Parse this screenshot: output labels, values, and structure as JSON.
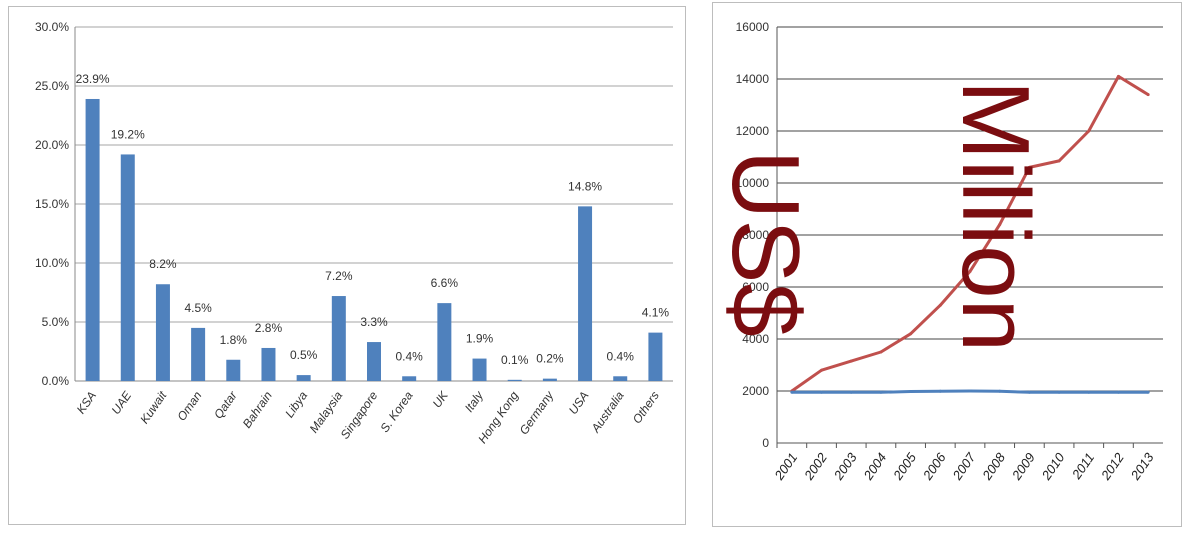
{
  "chart_data": [
    {
      "type": "bar",
      "categories": [
        "KSA",
        "UAE",
        "Kuwait",
        "Oman",
        "Qatar",
        "Bahrain",
        "Libya",
        "Malaysia",
        "Singapore",
        "S. Korea",
        "UK",
        "Italy",
        "Hong Kong",
        "Germany",
        "USA",
        "Australia",
        "Others"
      ],
      "values": [
        23.9,
        19.2,
        8.2,
        4.5,
        1.8,
        2.8,
        0.5,
        7.2,
        3.3,
        0.4,
        6.6,
        1.9,
        0.1,
        0.2,
        14.8,
        0.4,
        4.1
      ],
      "data_labels": [
        "23.9%",
        "19.2%",
        "8.2%",
        "4.5%",
        "1.8%",
        "2.8%",
        "0.5%",
        "7.2%",
        "3.3%",
        "0.4%",
        "6.6%",
        "1.9%",
        "0.1%",
        "0.2%",
        "14.8%",
        "0.4%",
        "4.1%"
      ],
      "y_ticks": [
        "0.0%",
        "5.0%",
        "10.0%",
        "15.0%",
        "20.0%",
        "25.0%",
        "30.0%"
      ],
      "ylim": [
        0,
        30
      ],
      "grid": true,
      "bar_color": "#4f81bd"
    },
    {
      "type": "line",
      "x": [
        "2001",
        "2002",
        "2003",
        "2004",
        "2005",
        "2006",
        "2007",
        "2008",
        "2009",
        "2010",
        "2011",
        "2012",
        "2013"
      ],
      "series": [
        {
          "color": "#c0504d",
          "values": [
            2000,
            2800,
            3150,
            3500,
            4200,
            5300,
            6600,
            8400,
            10600,
            10850,
            12000,
            14100,
            13400
          ]
        },
        {
          "color": "#4f81bd",
          "values": [
            1950,
            1950,
            1950,
            1950,
            1980,
            1990,
            2000,
            1990,
            1950,
            1950,
            1950,
            1950,
            1950
          ]
        }
      ],
      "y_ticks": [
        "0",
        "2000",
        "4000",
        "6000",
        "8000",
        "10000",
        "12000",
        "14000",
        "16000"
      ],
      "ylim": [
        0,
        16000
      ],
      "grid": true
    }
  ],
  "overlay": {
    "usd": "US$",
    "million": "Million",
    "color": "#7b0d10"
  }
}
